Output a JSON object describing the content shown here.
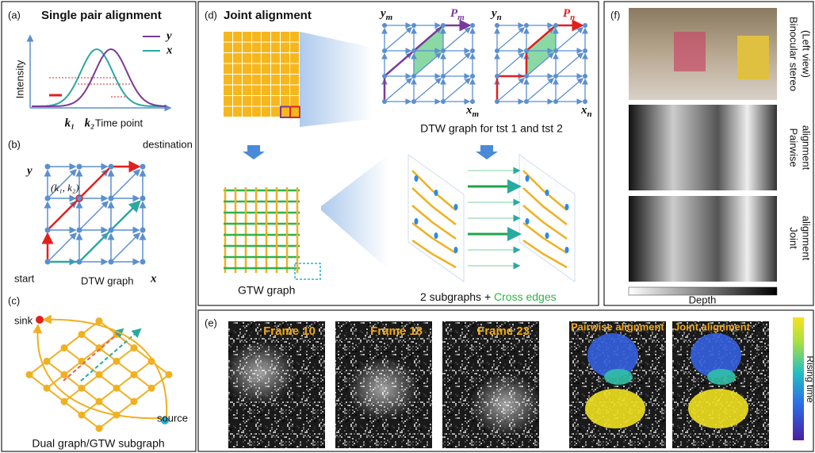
{
  "panel_a": {
    "label": "(a)",
    "title": "Single pair alignment",
    "legend": [
      "y",
      "x"
    ],
    "y_axis": "Intensity",
    "x_axis": "Time point",
    "k1": "k₁",
    "k2": "k₂"
  },
  "panel_b": {
    "label": "(b)",
    "y_axis": "y",
    "x_axis": "x",
    "destination": "destination",
    "point": "(k₁, k₂)",
    "start": "start",
    "caption": "DTW graph"
  },
  "panel_c": {
    "label": "(c)",
    "sink": "sink",
    "source": "source",
    "caption": "Dual graph/GTW subgraph"
  },
  "panel_d": {
    "label": "(d)",
    "title": "Joint alignment",
    "ym": "y",
    "ym_sub": "m",
    "pm": "P",
    "pm_sub": "m",
    "yn": "y",
    "yn_sub": "n",
    "pn": "P",
    "pn_sub": "n",
    "xm": "x",
    "xm_sub": "m",
    "xn": "x",
    "xn_sub": "n",
    "dtw_caption": "DTW graph for tst 1 and tst 2",
    "gtw_caption": "GTW graph",
    "sub_caption": "2 subgraphs + ",
    "cross_caption": "Cross edges"
  },
  "panel_e": {
    "label": "(e)",
    "frames": [
      "Frame 10",
      "Frame 18",
      "Frame 23"
    ],
    "pairwise": "Pairwise alignment",
    "joint": "Joint alignment",
    "colorbar": "Rising time"
  },
  "panel_f": {
    "label": "(f)",
    "rows": [
      "Binocular stereo",
      "(Left view)",
      "Pairwise",
      "alignment",
      "Joint",
      "alignment"
    ],
    "depth": "Depth"
  }
}
